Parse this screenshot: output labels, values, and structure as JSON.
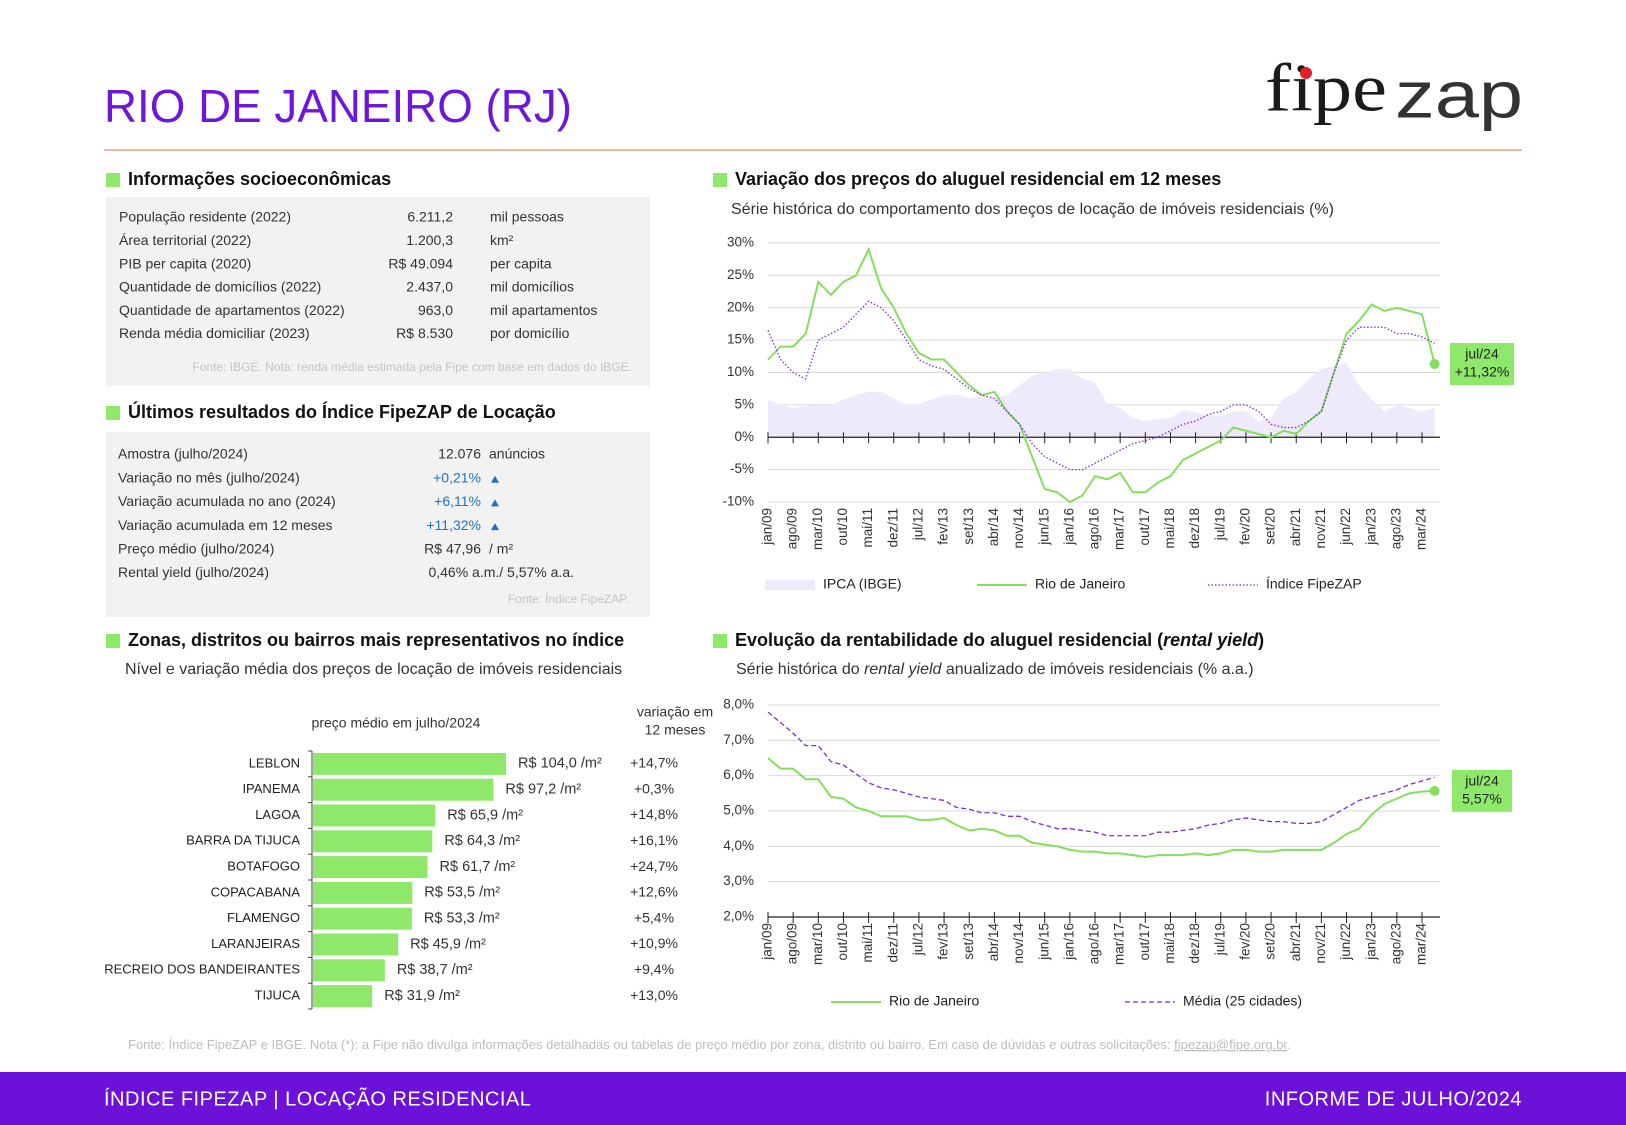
{
  "header": {
    "title": "RIO DE JANEIRO (RJ)",
    "logo": [
      "fipe",
      "zap"
    ]
  },
  "socio": {
    "title": "Informações socioeconômicas",
    "rows": [
      [
        "População residente (2022)",
        "6.211,2",
        "mil pessoas"
      ],
      [
        "Área territorial (2022)",
        "1.200,3",
        "km²"
      ],
      [
        "PIB per capita (2020)",
        "R$ 49.094",
        "per capita"
      ],
      [
        "Quantidade de domicílios (2022)",
        "2.437,0",
        "mil domicílios"
      ],
      [
        "Quantidade de apartamentos (2022)",
        "963,0",
        "mil apartamentos"
      ],
      [
        "Renda média domiciliar (2023)",
        "R$ 8.530",
        "por domicílio"
      ]
    ],
    "note": "Fonte: IBGE. Nota: renda média estimada pela Fipe com base em dados do IBGE."
  },
  "results": {
    "title": "Últimos resultados do Índice FipeZAP de Locação",
    "rows": [
      [
        "Amostra (julho/2024)",
        "12.076",
        "anúncios"
      ],
      [
        "Variação no mês (julho/2024)",
        "+0,21%"
      ],
      [
        "Variação acumulada no ano (2024)",
        "+6,11%"
      ],
      [
        "Variação acumulada em 12 meses",
        "+11,32%"
      ],
      [
        "Preço médio (julho/2024)",
        "R$ 47,96",
        "/ m²"
      ],
      [
        "Rental yield (julho/2024)",
        "0,46% a.m./ 5,57% a.a."
      ]
    ],
    "note": "Fonte: Índice FipeZAP."
  },
  "chart_data": [
    {
      "type": "line",
      "title": "Variação dos preços do aluguel residencial em 12 meses",
      "subtitle": "Série histórica do comportamento dos preços de locação de imóveis residenciais (%)",
      "categories": [
        "jan/09",
        null,
        "ago/09",
        null,
        "mar/10",
        null,
        "out/10",
        null,
        "mai/11",
        null,
        "dez/11",
        null,
        "jul/12",
        null,
        "fev/13",
        null,
        "set/13",
        null,
        "abr/14",
        null,
        "nov/14",
        null,
        "jun/15",
        null,
        "jan/16",
        null,
        "ago/16",
        null,
        "mar/17",
        null,
        "out/17",
        null,
        "mai/18",
        null,
        "dez/18",
        null,
        "jul/19",
        null,
        "fev/20",
        null,
        "set/20",
        null,
        "abr/21",
        null,
        "nov/21",
        null,
        "jun/22",
        null,
        "jan/23",
        null,
        "ago/23",
        null,
        "mar/24",
        null
      ],
      "series": [
        {
          "name": "IPCA (IBGE)",
          "style": "area",
          "color": "#eeeafb",
          "values": [
            5.8,
            5,
            4.5,
            4.8,
            5,
            5,
            5.8,
            6.5,
            7,
            7,
            6,
            5,
            5.2,
            5.8,
            6.5,
            6.6,
            6,
            6.3,
            6,
            6.5,
            8,
            9.5,
            10,
            10.5,
            10.5,
            9,
            8.5,
            5,
            4.5,
            3,
            2.5,
            2.8,
            3,
            4.2,
            3.8,
            3.5,
            3.2,
            4,
            4,
            2.5,
            3,
            6,
            7,
            9,
            10.5,
            11,
            11.5,
            8,
            5.8,
            4,
            5,
            4.5,
            4,
            4.5
          ]
        },
        {
          "name": "Rio de Janeiro",
          "style": "solid",
          "color": "#84df5c",
          "values": [
            12,
            14,
            14,
            16,
            24,
            22,
            24,
            25,
            29,
            23,
            20,
            16,
            13,
            12,
            12,
            10,
            8,
            6.5,
            7,
            4,
            2,
            -3,
            -8,
            -8.5,
            -10,
            -9,
            -6,
            -6.5,
            -5.5,
            -8.5,
            -8.5,
            -7,
            -6,
            -3.5,
            -2.5,
            -1.5,
            -0.5,
            1.5,
            1,
            0.5,
            0,
            1,
            0.5,
            2.5,
            4,
            10,
            16,
            18,
            20.5,
            19.5,
            20,
            19.5,
            19,
            11.32
          ],
          "annotation": {
            "label": "jul/24",
            "value_label": "+11,32%"
          }
        },
        {
          "name": "Índice FipeZAP",
          "style": "dot",
          "color": "#7b2fd0",
          "values": [
            16.5,
            12,
            10,
            9,
            15,
            16,
            17,
            19,
            21,
            20,
            18,
            15,
            12,
            11,
            10.5,
            9,
            7.5,
            6.5,
            6,
            4,
            2,
            -1,
            -3,
            -4,
            -5,
            -5,
            -4,
            -3,
            -2,
            -1,
            -0.5,
            0,
            1,
            2,
            2.5,
            3.5,
            4,
            5,
            5,
            4,
            2,
            1.5,
            1.5,
            2.5,
            4,
            10,
            15,
            17,
            17,
            17,
            16,
            16,
            15.5,
            14.5
          ]
        }
      ],
      "ylim": [
        -10,
        30
      ],
      "yticks": [
        {
          "value": -10,
          "label": "-10%"
        },
        {
          "value": -5,
          "label": "-5%"
        },
        {
          "value": 0,
          "label": "0%"
        },
        {
          "value": 5,
          "label": "5%"
        },
        {
          "value": 10,
          "label": "10%"
        },
        {
          "value": 15,
          "label": "15%"
        },
        {
          "value": 20,
          "label": "20%"
        },
        {
          "value": 25,
          "label": "25%"
        },
        {
          "value": 30,
          "label": "30%"
        }
      ],
      "grid": true
    },
    {
      "type": "bar",
      "title": "Zonas, distritos ou bairros mais representativos no índice",
      "subtitle": "Nível e variação média dos preços de locação de imóveis residenciais",
      "value_header": "preço médio em julho/2024",
      "change_header": [
        "variação em",
        "12 meses"
      ],
      "categories": [
        "LEBLON",
        "IPANEMA",
        "LAGOA",
        "BARRA DA TIJUCA",
        "BOTAFOGO",
        "COPACABANA",
        "FLAMENGO",
        "LARANJEIRAS",
        "RECREIO DOS BANDEIRANTES",
        "TIJUCA"
      ],
      "values": [
        104.0,
        97.2,
        65.9,
        64.3,
        61.7,
        53.5,
        53.3,
        45.9,
        38.7,
        31.9
      ],
      "value_labels": [
        "R$ 104,0 /m²",
        "R$ 97,2 /m²",
        "R$ 65,9 /m²",
        "R$ 64,3 /m²",
        "R$ 61,7 /m²",
        "R$ 53,5 /m²",
        "R$ 53,3 /m²",
        "R$ 45,9 /m²",
        "R$ 38,7 /m²",
        "R$ 31,9 /m²"
      ],
      "change_labels": [
        "+14,7%",
        "+0,3%",
        "+14,8%",
        "+16,1%",
        "+24,7%",
        "+12,6%",
        "+5,4%",
        "+10,9%",
        "+9,4%",
        "+13,0%"
      ],
      "color": "#8ee86a"
    },
    {
      "type": "line",
      "title": [
        "Evolução da rentabilidade do aluguel residencial (",
        "rental yield",
        ")"
      ],
      "subtitle": [
        "Série histórica do ",
        "rental yield",
        " anualizado de imóveis residenciais (% a.a.)"
      ],
      "categories": [
        "jan/09",
        null,
        "ago/09",
        null,
        "mar/10",
        null,
        "out/10",
        null,
        "mai/11",
        null,
        "dez/11",
        null,
        "jul/12",
        null,
        "fev/13",
        null,
        "set/13",
        null,
        "abr/14",
        null,
        "nov/14",
        null,
        "jun/15",
        null,
        "jan/16",
        null,
        "ago/16",
        null,
        "mar/17",
        null,
        "out/17",
        null,
        "mai/18",
        null,
        "dez/18",
        null,
        "jul/19",
        null,
        "fev/20",
        null,
        "set/20",
        null,
        "abr/21",
        null,
        "nov/21",
        null,
        "jun/22",
        null,
        "jan/23",
        null,
        "ago/23",
        null,
        "mar/24",
        null
      ],
      "series": [
        {
          "name": "Rio de Janeiro",
          "style": "solid",
          "color": "#84df5c",
          "values": [
            6.5,
            6.2,
            6.2,
            5.9,
            5.9,
            5.4,
            5.35,
            5.1,
            5.0,
            4.85,
            4.85,
            4.85,
            4.75,
            4.75,
            4.8,
            4.6,
            4.45,
            4.5,
            4.45,
            4.3,
            4.3,
            4.1,
            4.05,
            4.0,
            3.9,
            3.85,
            3.85,
            3.8,
            3.8,
            3.75,
            3.7,
            3.75,
            3.75,
            3.75,
            3.8,
            3.75,
            3.8,
            3.9,
            3.9,
            3.85,
            3.85,
            3.9,
            3.9,
            3.9,
            3.9,
            4.1,
            4.35,
            4.5,
            4.9,
            5.2,
            5.35,
            5.5,
            5.55,
            5.57
          ],
          "annotation": {
            "label": "jul/24",
            "value_label": "5,57%"
          }
        },
        {
          "name": "Média (25 cidades)",
          "style": "dash",
          "color": "#7b2fd0",
          "values": [
            7.8,
            7.5,
            7.2,
            6.85,
            6.85,
            6.4,
            6.3,
            6.05,
            5.8,
            5.65,
            5.6,
            5.5,
            5.4,
            5.35,
            5.3,
            5.1,
            5.05,
            4.95,
            4.95,
            4.85,
            4.85,
            4.7,
            4.6,
            4.5,
            4.5,
            4.45,
            4.4,
            4.3,
            4.3,
            4.3,
            4.3,
            4.4,
            4.4,
            4.45,
            4.5,
            4.6,
            4.65,
            4.75,
            4.8,
            4.75,
            4.7,
            4.7,
            4.65,
            4.65,
            4.7,
            4.9,
            5.1,
            5.3,
            5.4,
            5.5,
            5.6,
            5.75,
            5.85,
            5.95
          ]
        }
      ],
      "ylim": [
        2,
        8
      ],
      "yticks": [
        {
          "value": 2,
          "label": "2,0%"
        },
        {
          "value": 3,
          "label": "3,0%"
        },
        {
          "value": 4,
          "label": "4,0%"
        },
        {
          "value": 5,
          "label": "5,0%"
        },
        {
          "value": 6,
          "label": "6,0%"
        },
        {
          "value": 7,
          "label": "7,0%"
        },
        {
          "value": 8,
          "label": "8,0%"
        }
      ],
      "grid": true
    }
  ],
  "footer": {
    "note": "Fonte: Índice FipeZAP e IBGE. Nota (*): a Fipe não divulga informações detalhadas ou tabelas de preço médio por zona, distrito ou bairro. Em caso de dúvidas e outras solicitações: ",
    "email": "fipezap@fipe.org.br",
    "note_end": ".",
    "left": "ÍNDICE FIPEZAP | LOCAÇÃO RESIDENCIAL",
    "right": "INFORME DE JULHO/2024"
  }
}
